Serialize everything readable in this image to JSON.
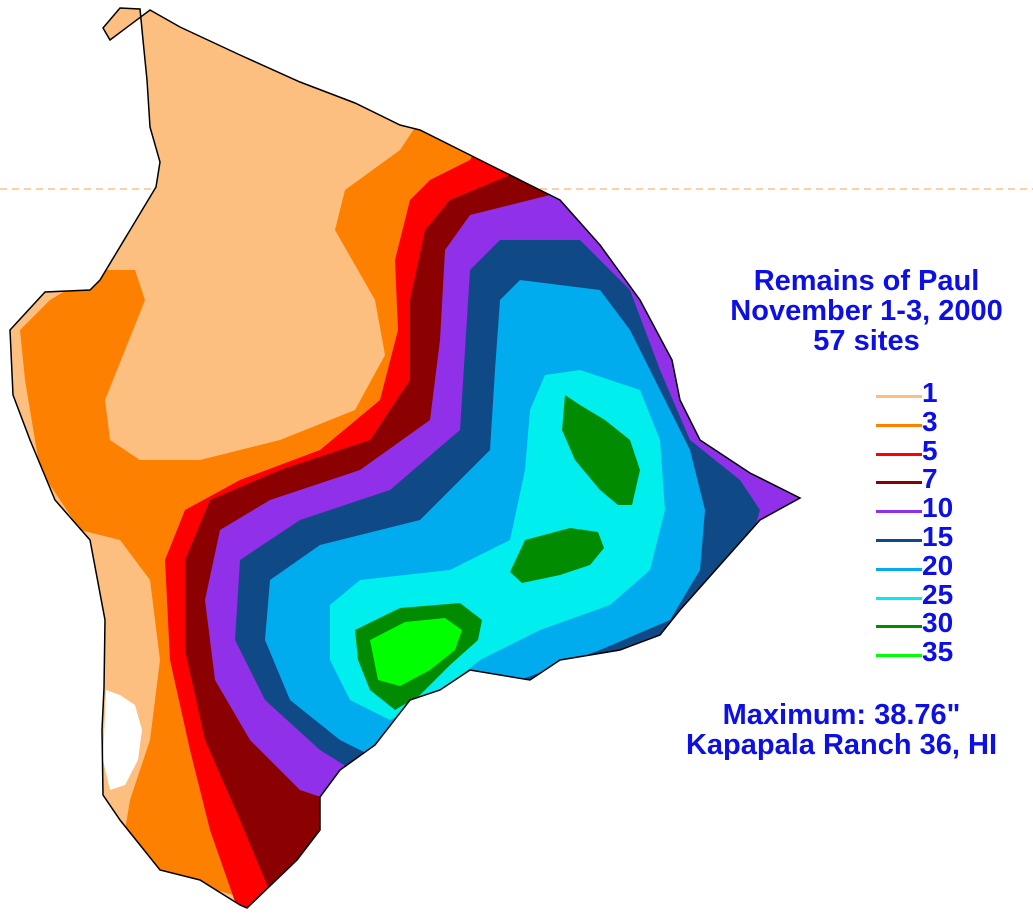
{
  "title": {
    "line1": "Remains of Paul",
    "line2": "November 1-3, 2000",
    "line3": "57 sites"
  },
  "legend": [
    {
      "label": "1",
      "color": "#fdbf80"
    },
    {
      "label": "3",
      "color": "#fd8000"
    },
    {
      "label": "5",
      "color": "#ff0000"
    },
    {
      "label": "7",
      "color": "#8b0000"
    },
    {
      "label": "10",
      "color": "#9030e8"
    },
    {
      "label": "15",
      "color": "#0f4a86"
    },
    {
      "label": "20",
      "color": "#00acee"
    },
    {
      "label": "25",
      "color": "#00eeee"
    },
    {
      "label": "30",
      "color": "#008b00"
    },
    {
      "label": "35",
      "color": "#00ff00"
    }
  ],
  "maximum": {
    "line1": "Maximum:  38.76\"",
    "line2": "Kapapala Ranch 36, HI"
  },
  "colors": {
    "text": "#0d10e6",
    "guide_line": "#fdbf80",
    "outline": "#000000"
  }
}
